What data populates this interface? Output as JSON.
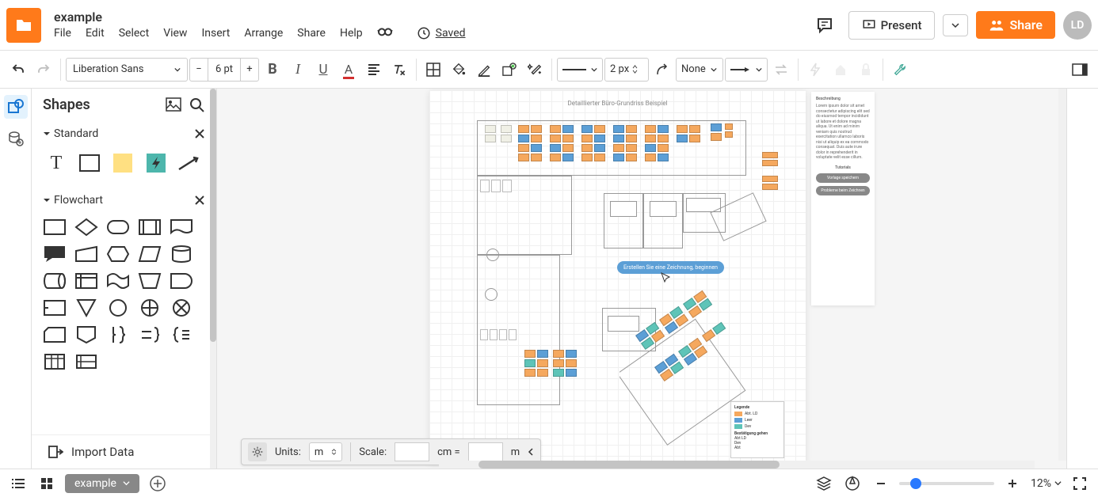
{
  "doc": {
    "title": "example"
  },
  "menu": {
    "file": "File",
    "edit": "Edit",
    "select": "Select",
    "view": "View",
    "insert": "Insert",
    "arrange": "Arrange",
    "share": "Share",
    "help": "Help"
  },
  "saved": {
    "label": "Saved"
  },
  "header_buttons": {
    "present": "Present",
    "share": "Share"
  },
  "avatar": {
    "initials": "LD"
  },
  "toolbar": {
    "font": "Liberation Sans",
    "font_size": "6 pt",
    "stroke_width": "2 px",
    "arrow_start": "None"
  },
  "sidebar": {
    "title": "Shapes",
    "sections": {
      "standard": "Standard",
      "flowchart": "Flowchart"
    },
    "import": "Import Data"
  },
  "canvas": {
    "page_title": "Detaillierter Büro-Grundriss Beispiel",
    "tooltip": "Erstellen Sie eine Zeichnung,\nbeginnen",
    "colors": {
      "orange": "#f5a85e",
      "blue": "#5c9fd6",
      "teal": "#5ec4b8",
      "grey": "#f0f0e6"
    },
    "side_panel": {
      "title": "Beschreibung",
      "body": "Lorem ipsum dolor sit amet consectetur adipiscing elit sed do eiusmod tempor incididunt ut labore et dolore magna aliqua. Ut enim ad minim veniam quis nostrud exercitation ullamco laboris nisi ut aliquip ex ea commodo consequat. Duis aute irure dolor in reprehenderit in voluptate velit esse cillum.",
      "btn1": "Vorlage speichern",
      "btn2": "Probleme beim Zeichnen",
      "sub": "Tutorials"
    },
    "legend": {
      "title": "Legende",
      "items": [
        {
          "c": "#f5a85e",
          "l": "Abt. LD"
        },
        {
          "c": "#5c9fd6",
          "l": "Leer"
        },
        {
          "c": "#5ec4b8",
          "l": "Dev"
        }
      ],
      "footer": "Bestätigung gehen",
      "f1": "Abt LD",
      "f2": "Dev",
      "f3": "Abt"
    }
  },
  "ruler": {
    "units_label": "Units:",
    "units_val": "m",
    "scale_label": "Scale:",
    "scale_val1": "",
    "scale_unit1": "cm =",
    "scale_val2": "",
    "scale_unit2": "m"
  },
  "footer": {
    "page_tab": "example",
    "zoom": "12%"
  }
}
